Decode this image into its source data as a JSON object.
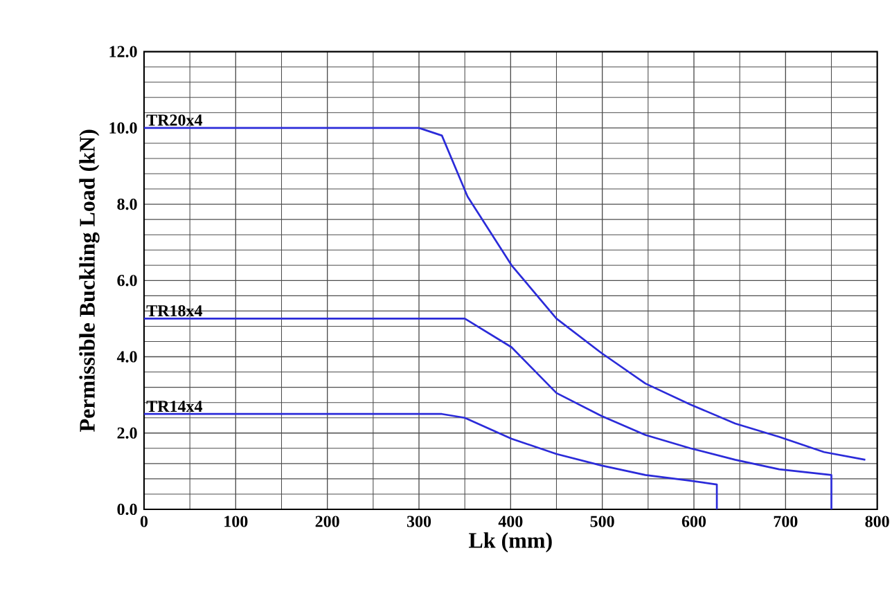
{
  "chart_data": {
    "type": "line",
    "xlabel": "Lk (mm)",
    "ylabel": "Permissible Buckling Load (kN)",
    "xlim": [
      0,
      800
    ],
    "ylim": [
      0,
      12
    ],
    "xticks": [
      0,
      100,
      200,
      300,
      400,
      500,
      600,
      700,
      800
    ],
    "yticks": [
      {
        "value": 0,
        "label": "0.0"
      },
      {
        "value": 2,
        "label": "2.0"
      },
      {
        "value": 4,
        "label": "4.0"
      },
      {
        "value": 6,
        "label": "6.0"
      },
      {
        "value": 8,
        "label": "8.0"
      },
      {
        "value": 10,
        "label": "10.0"
      },
      {
        "value": 12,
        "label": "12.0"
      }
    ],
    "grid": true,
    "legend": false,
    "marker": "none",
    "line_style": "solid",
    "series": [
      {
        "name": "TR20x4",
        "color": "#2b2bd9",
        "x": [
          0,
          300,
          325,
          353,
          401,
          450,
          499,
          547,
          596,
          645,
          693,
          742,
          787
        ],
        "values": [
          10,
          10,
          9.8,
          8.2,
          6.4,
          5.0,
          4.1,
          3.3,
          2.75,
          2.25,
          1.9,
          1.5,
          1.3
        ]
      },
      {
        "name": "TR18x4",
        "color": "#2b2bd9",
        "x": [
          0,
          350,
          401,
          450,
          499,
          547,
          596,
          645,
          693,
          750,
          750
        ],
        "values": [
          5,
          5,
          4.25,
          3.05,
          2.45,
          1.95,
          1.6,
          1.3,
          1.05,
          0.9,
          0
        ]
      },
      {
        "name": "TR14x4",
        "color": "#2b2bd9",
        "x": [
          0,
          325,
          350,
          401,
          450,
          499,
          547,
          596,
          625,
          625
        ],
        "values": [
          2.5,
          2.5,
          2.4,
          1.85,
          1.45,
          1.15,
          0.9,
          0.75,
          0.65,
          0
        ]
      }
    ]
  }
}
